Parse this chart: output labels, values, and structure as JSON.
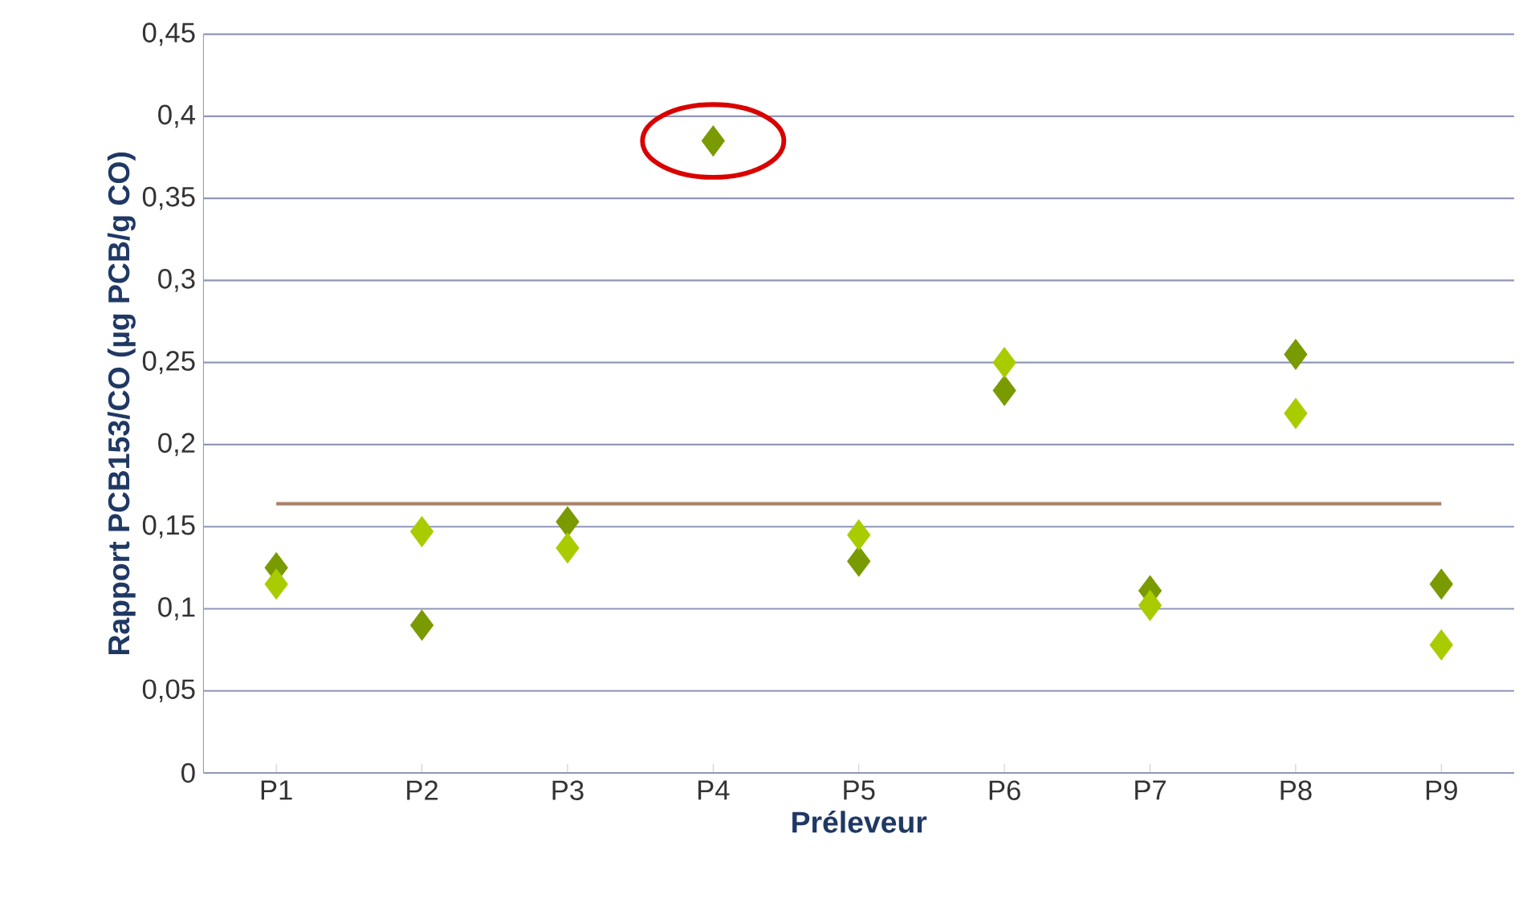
{
  "chart_data": {
    "type": "scatter",
    "xlabel": "Préleveur",
    "ylabel": "Rapport PCB153/CO (µg PCB/g CO)",
    "categories": [
      "P1",
      "P2",
      "P3",
      "P4",
      "P5",
      "P6",
      "P7",
      "P8",
      "P9"
    ],
    "series": [
      {
        "color": "#7a9a01",
        "values": [
          0.125,
          0.09,
          0.153,
          0.385,
          0.129,
          0.233,
          0.111,
          0.255,
          0.115
        ]
      },
      {
        "color": "#a8cc00",
        "values": [
          0.115,
          0.147,
          0.137,
          null,
          0.145,
          0.25,
          0.102,
          0.219,
          0.078
        ]
      }
    ],
    "ylim": [
      0,
      0.45
    ],
    "yticks": [
      0,
      {
        "value": 0.05,
        "label": "0,05"
      },
      {
        "value": 0.1,
        "label": "0,1"
      },
      {
        "value": 0.15,
        "label": "0,15"
      },
      {
        "value": 0.2,
        "label": "0,2"
      },
      {
        "value": 0.25,
        "label": "0,25"
      },
      {
        "value": 0.3,
        "label": "0,3"
      },
      {
        "value": 0.35,
        "label": "0,35"
      },
      {
        "value": 0.4,
        "label": "0,4"
      },
      {
        "value": 0.45,
        "label": "0,45"
      }
    ],
    "ref_lines": [
      {
        "axis": "y",
        "value": 0.164,
        "color": "#a8826a"
      }
    ],
    "grid": "y",
    "marker": "diamond"
  }
}
